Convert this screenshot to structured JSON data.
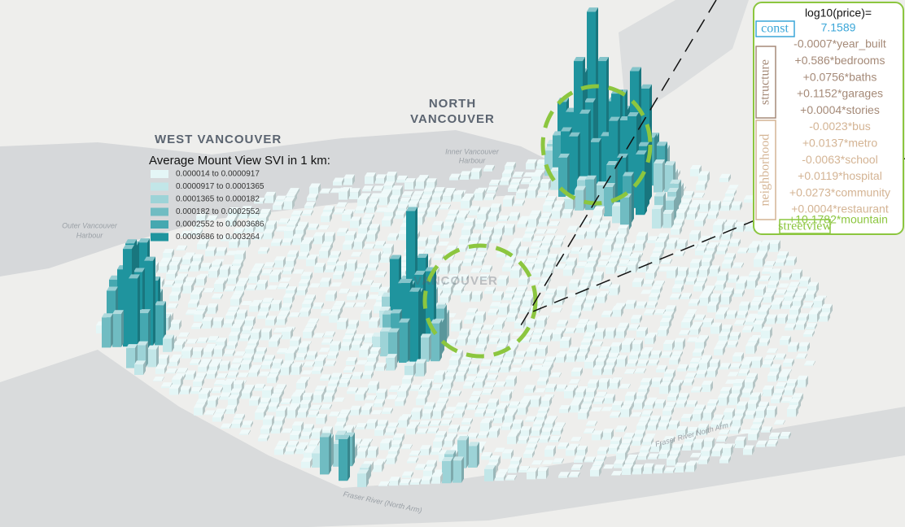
{
  "map_labels": {
    "west_vancouver": "WEST VANCOUVER",
    "north_vancouver": [
      "NORTH",
      "VANCOUVER"
    ],
    "vancouver": "VANCOUVER",
    "inner_harbour": [
      "Inner Vancouver",
      "Harbour"
    ],
    "outer_harbour": [
      "Outer Vancouver",
      "Harbour"
    ],
    "fraser_north_arm": "Fraser River (North Arm)",
    "fraser_east": "Fraser River North Arm"
  },
  "legend": {
    "title": "Average Mount View SVI in 1 km:",
    "items": [
      {
        "label": "0.000014 to 0.0000917",
        "color": "#e4f6f6"
      },
      {
        "label": "0.0000917 to 0.0001365",
        "color": "#c2e6e8"
      },
      {
        "label": "0.0001365 to 0.000182",
        "color": "#9dd3d7"
      },
      {
        "label": "0.000182 to 0.0002552",
        "color": "#70bcc2"
      },
      {
        "label": "0.0002552 to 0.0003686",
        "color": "#45a8b0"
      },
      {
        "label": "0.0003686 to 0.003264",
        "color": "#1f949e"
      }
    ]
  },
  "equation": {
    "lhs": "log10(price)=",
    "groups": [
      {
        "name": "const",
        "color": "#3aa6d8",
        "terms": [
          "7.1589"
        ]
      },
      {
        "name": "structure",
        "color": "#a58a78",
        "terms": [
          "-0.0007*year_built",
          "+0.586*bedrooms",
          "+0.0756*baths",
          "+0.1152*garages",
          "+0.0004*stories"
        ]
      },
      {
        "name": "neighborhood",
        "color": "#d4b494",
        "terms": [
          "-0.0023*bus",
          "+0.0137*metro",
          "-0.0063*school",
          "+0.0119*hospital",
          "+0.0273*community",
          "+0.0004*restaurant"
        ]
      },
      {
        "name": "streetview",
        "color": "#8cc63f",
        "terms": [
          "+10.1782*mountain"
        ]
      }
    ]
  }
}
